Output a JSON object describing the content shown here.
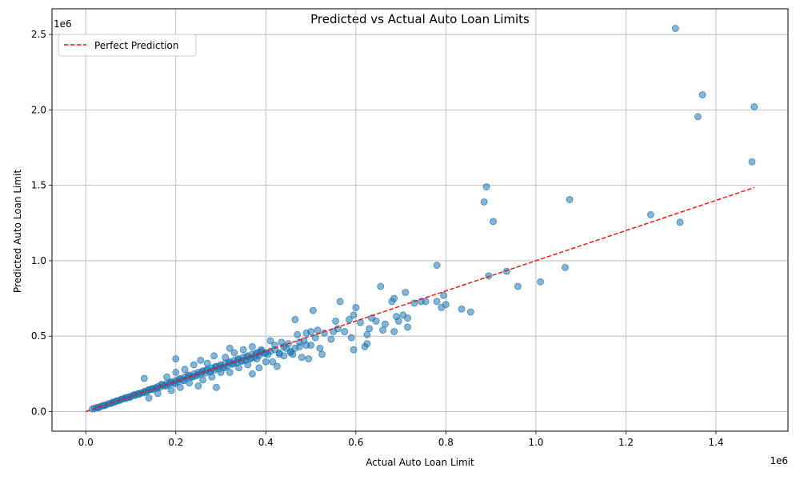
{
  "chart_data": {
    "type": "scatter",
    "title": "Predicted vs Actual Auto Loan Limits",
    "xlabel": "Actual Auto Loan Limit",
    "ylabel": "Predicted Auto Loan Limit",
    "x_offset_label": "1e6",
    "y_offset_label": "1e6",
    "xlim": [
      -0.075,
      1.56
    ],
    "ylim": [
      -0.13,
      2.67
    ],
    "x_ticks": [
      0.0,
      0.2,
      0.4,
      0.6,
      0.8,
      1.0,
      1.2,
      1.4
    ],
    "x_tick_labels": [
      "0.0",
      "0.2",
      "0.4",
      "0.6",
      "0.8",
      "1.0",
      "1.2",
      "1.4"
    ],
    "y_ticks": [
      0.0,
      0.5,
      1.0,
      1.5,
      2.0,
      2.5
    ],
    "y_tick_labels": [
      "0.0",
      "0.5",
      "1.0",
      "1.5",
      "2.0",
      "2.5"
    ],
    "grid": true,
    "legend_position": "upper-left",
    "series": [
      {
        "name": "",
        "kind": "scatter",
        "color": "#1f77b4",
        "alpha": 0.55,
        "points": [
          [
            0.02,
            0.022
          ],
          [
            0.025,
            0.027
          ],
          [
            0.03,
            0.03
          ],
          [
            0.035,
            0.036
          ],
          [
            0.04,
            0.041
          ],
          [
            0.045,
            0.044
          ],
          [
            0.05,
            0.052
          ],
          [
            0.055,
            0.053
          ],
          [
            0.06,
            0.062
          ],
          [
            0.065,
            0.064
          ],
          [
            0.07,
            0.072
          ],
          [
            0.075,
            0.074
          ],
          [
            0.08,
            0.082
          ],
          [
            0.085,
            0.086
          ],
          [
            0.09,
            0.088
          ],
          [
            0.095,
            0.097
          ],
          [
            0.1,
            0.1
          ],
          [
            0.105,
            0.108
          ],
          [
            0.11,
            0.107
          ],
          [
            0.115,
            0.118
          ],
          [
            0.12,
            0.122
          ],
          [
            0.125,
            0.124
          ],
          [
            0.13,
            0.133
          ],
          [
            0.135,
            0.13
          ],
          [
            0.14,
            0.144
          ],
          [
            0.145,
            0.148
          ],
          [
            0.15,
            0.147
          ],
          [
            0.155,
            0.158
          ],
          [
            0.16,
            0.165
          ],
          [
            0.165,
            0.16
          ],
          [
            0.17,
            0.176
          ],
          [
            0.175,
            0.172
          ],
          [
            0.18,
            0.186
          ],
          [
            0.185,
            0.18
          ],
          [
            0.19,
            0.197
          ],
          [
            0.195,
            0.19
          ],
          [
            0.2,
            0.206
          ],
          [
            0.205,
            0.2
          ],
          [
            0.21,
            0.218
          ],
          [
            0.215,
            0.21
          ],
          [
            0.22,
            0.23
          ],
          [
            0.225,
            0.222
          ],
          [
            0.23,
            0.238
          ],
          [
            0.235,
            0.228
          ],
          [
            0.24,
            0.25
          ],
          [
            0.245,
            0.236
          ],
          [
            0.25,
            0.26
          ],
          [
            0.255,
            0.248
          ],
          [
            0.26,
            0.27
          ],
          [
            0.265,
            0.255
          ],
          [
            0.27,
            0.28
          ],
          [
            0.275,
            0.262
          ],
          [
            0.28,
            0.29
          ],
          [
            0.285,
            0.275
          ],
          [
            0.29,
            0.3
          ],
          [
            0.295,
            0.283
          ],
          [
            0.3,
            0.31
          ],
          [
            0.305,
            0.295
          ],
          [
            0.31,
            0.32
          ],
          [
            0.315,
            0.302
          ],
          [
            0.32,
            0.33
          ],
          [
            0.325,
            0.315
          ],
          [
            0.33,
            0.34
          ],
          [
            0.335,
            0.322
          ],
          [
            0.34,
            0.35
          ],
          [
            0.345,
            0.333
          ],
          [
            0.35,
            0.36
          ],
          [
            0.355,
            0.34
          ],
          [
            0.36,
            0.37
          ],
          [
            0.365,
            0.35
          ],
          [
            0.37,
            0.38
          ],
          [
            0.375,
            0.36
          ],
          [
            0.38,
            0.39
          ],
          [
            0.385,
            0.372
          ],
          [
            0.39,
            0.4
          ],
          [
            0.4,
            0.39
          ],
          [
            0.13,
            0.22
          ],
          [
            0.14,
            0.09
          ],
          [
            0.16,
            0.12
          ],
          [
            0.18,
            0.23
          ],
          [
            0.19,
            0.14
          ],
          [
            0.2,
            0.26
          ],
          [
            0.2,
            0.35
          ],
          [
            0.21,
            0.16
          ],
          [
            0.22,
            0.28
          ],
          [
            0.23,
            0.19
          ],
          [
            0.24,
            0.31
          ],
          [
            0.25,
            0.17
          ],
          [
            0.255,
            0.34
          ],
          [
            0.26,
            0.21
          ],
          [
            0.27,
            0.32
          ],
          [
            0.28,
            0.23
          ],
          [
            0.285,
            0.37
          ],
          [
            0.29,
            0.16
          ],
          [
            0.3,
            0.26
          ],
          [
            0.31,
            0.36
          ],
          [
            0.32,
            0.42
          ],
          [
            0.32,
            0.26
          ],
          [
            0.33,
            0.39
          ],
          [
            0.34,
            0.29
          ],
          [
            0.35,
            0.41
          ],
          [
            0.36,
            0.31
          ],
          [
            0.37,
            0.43
          ],
          [
            0.37,
            0.25
          ],
          [
            0.38,
            0.35
          ],
          [
            0.385,
            0.29
          ],
          [
            0.39,
            0.41
          ],
          [
            0.4,
            0.33
          ],
          [
            0.405,
            0.38
          ],
          [
            0.41,
            0.47
          ],
          [
            0.415,
            0.33
          ],
          [
            0.42,
            0.44
          ],
          [
            0.425,
            0.3
          ],
          [
            0.43,
            0.39
          ],
          [
            0.435,
            0.46
          ],
          [
            0.44,
            0.37
          ],
          [
            0.445,
            0.42
          ],
          [
            0.45,
            0.45
          ],
          [
            0.455,
            0.4
          ],
          [
            0.46,
            0.38
          ],
          [
            0.465,
            0.61
          ],
          [
            0.47,
            0.51
          ],
          [
            0.475,
            0.43
          ],
          [
            0.48,
            0.36
          ],
          [
            0.485,
            0.47
          ],
          [
            0.49,
            0.52
          ],
          [
            0.495,
            0.35
          ],
          [
            0.5,
            0.44
          ],
          [
            0.505,
            0.67
          ],
          [
            0.51,
            0.49
          ],
          [
            0.515,
            0.54
          ],
          [
            0.52,
            0.42
          ],
          [
            0.525,
            0.38
          ],
          [
            0.53,
            0.52
          ],
          [
            0.545,
            0.48
          ],
          [
            0.55,
            0.53
          ],
          [
            0.555,
            0.6
          ],
          [
            0.56,
            0.55
          ],
          [
            0.565,
            0.73
          ],
          [
            0.575,
            0.53
          ],
          [
            0.585,
            0.61
          ],
          [
            0.59,
            0.49
          ],
          [
            0.595,
            0.64
          ],
          [
            0.595,
            0.41
          ],
          [
            0.6,
            0.69
          ],
          [
            0.61,
            0.59
          ],
          [
            0.62,
            0.43
          ],
          [
            0.625,
            0.45
          ],
          [
            0.625,
            0.51
          ],
          [
            0.63,
            0.55
          ],
          [
            0.635,
            0.62
          ],
          [
            0.645,
            0.6
          ],
          [
            0.655,
            0.83
          ],
          [
            0.66,
            0.54
          ],
          [
            0.665,
            0.58
          ],
          [
            0.68,
            0.73
          ],
          [
            0.685,
            0.75
          ],
          [
            0.685,
            0.53
          ],
          [
            0.69,
            0.63
          ],
          [
            0.695,
            0.6
          ],
          [
            0.705,
            0.64
          ],
          [
            0.71,
            0.79
          ],
          [
            0.715,
            0.56
          ],
          [
            0.715,
            0.62
          ],
          [
            0.73,
            0.72
          ],
          [
            0.745,
            0.73
          ],
          [
            0.755,
            0.73
          ],
          [
            0.78,
            0.73
          ],
          [
            0.78,
            0.97
          ],
          [
            0.79,
            0.69
          ],
          [
            0.795,
            0.77
          ],
          [
            0.8,
            0.71
          ],
          [
            0.835,
            0.68
          ],
          [
            0.855,
            0.66
          ],
          [
            0.885,
            1.39
          ],
          [
            0.89,
            1.49
          ],
          [
            0.895,
            0.9
          ],
          [
            0.905,
            1.26
          ],
          [
            0.935,
            0.93
          ],
          [
            0.96,
            0.83
          ],
          [
            1.01,
            0.86
          ],
          [
            1.065,
            0.955
          ],
          [
            1.075,
            1.405
          ],
          [
            1.255,
            1.305
          ],
          [
            1.31,
            2.54
          ],
          [
            1.32,
            1.255
          ],
          [
            1.36,
            1.955
          ],
          [
            1.37,
            2.1
          ],
          [
            1.48,
            1.655
          ],
          [
            1.485,
            2.02
          ],
          [
            0.015,
            0.018
          ],
          [
            0.028,
            0.026
          ],
          [
            0.042,
            0.04
          ],
          [
            0.058,
            0.057
          ],
          [
            0.068,
            0.07
          ],
          [
            0.078,
            0.08
          ],
          [
            0.088,
            0.092
          ],
          [
            0.098,
            0.095
          ],
          [
            0.108,
            0.112
          ],
          [
            0.118,
            0.114
          ],
          [
            0.128,
            0.126
          ],
          [
            0.138,
            0.142
          ],
          [
            0.148,
            0.152
          ],
          [
            0.158,
            0.155
          ],
          [
            0.168,
            0.18
          ],
          [
            0.178,
            0.17
          ],
          [
            0.188,
            0.192
          ],
          [
            0.198,
            0.185
          ],
          [
            0.208,
            0.215
          ],
          [
            0.218,
            0.205
          ],
          [
            0.228,
            0.242
          ],
          [
            0.238,
            0.232
          ],
          [
            0.248,
            0.245
          ],
          [
            0.258,
            0.262
          ],
          [
            0.268,
            0.275
          ],
          [
            0.278,
            0.268
          ],
          [
            0.288,
            0.296
          ],
          [
            0.298,
            0.3
          ],
          [
            0.308,
            0.29
          ],
          [
            0.318,
            0.325
          ],
          [
            0.328,
            0.318
          ],
          [
            0.338,
            0.345
          ],
          [
            0.348,
            0.338
          ],
          [
            0.358,
            0.364
          ],
          [
            0.368,
            0.355
          ],
          [
            0.378,
            0.382
          ],
          [
            0.388,
            0.392
          ],
          [
            0.398,
            0.385
          ],
          [
            0.41,
            0.4
          ],
          [
            0.42,
            0.41
          ],
          [
            0.43,
            0.38
          ],
          [
            0.44,
            0.43
          ],
          [
            0.455,
            0.39
          ],
          [
            0.465,
            0.42
          ],
          [
            0.475,
            0.46
          ],
          [
            0.49,
            0.44
          ],
          [
            0.5,
            0.53
          ]
        ]
      },
      {
        "name": "Perfect Prediction",
        "kind": "line",
        "color": "#e31a1c",
        "dash": true,
        "x": [
          0.0,
          1.485
        ],
        "y": [
          0.0,
          1.485
        ]
      }
    ]
  }
}
